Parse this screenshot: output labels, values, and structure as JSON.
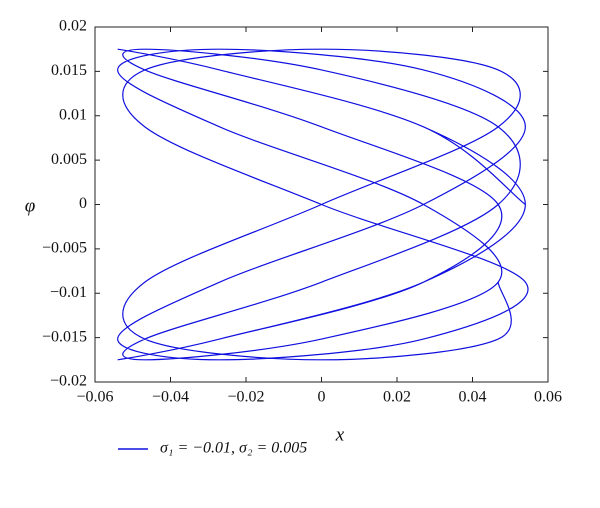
{
  "chart_data": {
    "type": "line",
    "x_label": "x",
    "y_label": "φ",
    "xlim": [
      -0.06,
      0.06
    ],
    "xticks": [
      {
        "value": -0.06,
        "label": "−0.06"
      },
      {
        "value": -0.04,
        "label": "−0.04"
      },
      {
        "value": -0.02,
        "label": "−0.02"
      },
      0,
      0.02,
      0.04,
      0.06
    ],
    "ylim": [
      -0.02,
      0.02
    ],
    "yticks": [
      {
        "value": -0.02,
        "label": "−0.02"
      },
      {
        "value": -0.015,
        "label": "−0.015"
      },
      {
        "value": -0.01,
        "label": "−0.01"
      },
      {
        "value": -0.005,
        "label": "−0.005"
      },
      0,
      0.005,
      0.01,
      0.015,
      0.02
    ],
    "x": [
      0.054,
      0.027,
      -0.027,
      -0.054,
      -0.027,
      0.027,
      0.054,
      0.027,
      -0.027,
      -0.054,
      -0.027,
      0.027,
      0.0468,
      0,
      -0.0468,
      -0.0468,
      0,
      0.0468,
      0.0468,
      0,
      -0.0468,
      -0.0468,
      0,
      0.0468,
      0.027,
      -0.027,
      -0.054,
      -0.027,
      0.027,
      0.054,
      0.027,
      -0.027,
      -0.054,
      -0.027,
      0.027,
      0.054,
      0,
      -0.0468,
      -0.0468,
      0,
      0.0468,
      0.0468,
      0,
      -0.0468,
      -0.0468,
      0,
      0.0468,
      0.0468
    ],
    "series": [
      {
        "name": "σ₁ = −0.01, σ₂ = 0.005",
        "color": "#1010e0",
        "values": [
          0,
          0.00875,
          0.01516,
          0.0175,
          0.01516,
          0.00875,
          0,
          -0.00875,
          -0.01516,
          -0.0175,
          -0.01516,
          -0.00875,
          0,
          0.00875,
          0.01516,
          0.0175,
          0.01516,
          0.00875,
          0,
          -0.00875,
          -0.01516,
          -0.0175,
          -0.01516,
          -0.00875,
          0,
          0.00875,
          0.01516,
          0.0175,
          0.01516,
          0.00875,
          0,
          -0.00875,
          -0.01516,
          -0.0175,
          -0.01516,
          -0.00875,
          0,
          0.00875,
          0.01516,
          0.0175,
          0.01516,
          0.00875,
          0,
          -0.00875,
          -0.01516,
          -0.0175,
          -0.01516,
          -0.00875
        ]
      }
    ]
  }
}
